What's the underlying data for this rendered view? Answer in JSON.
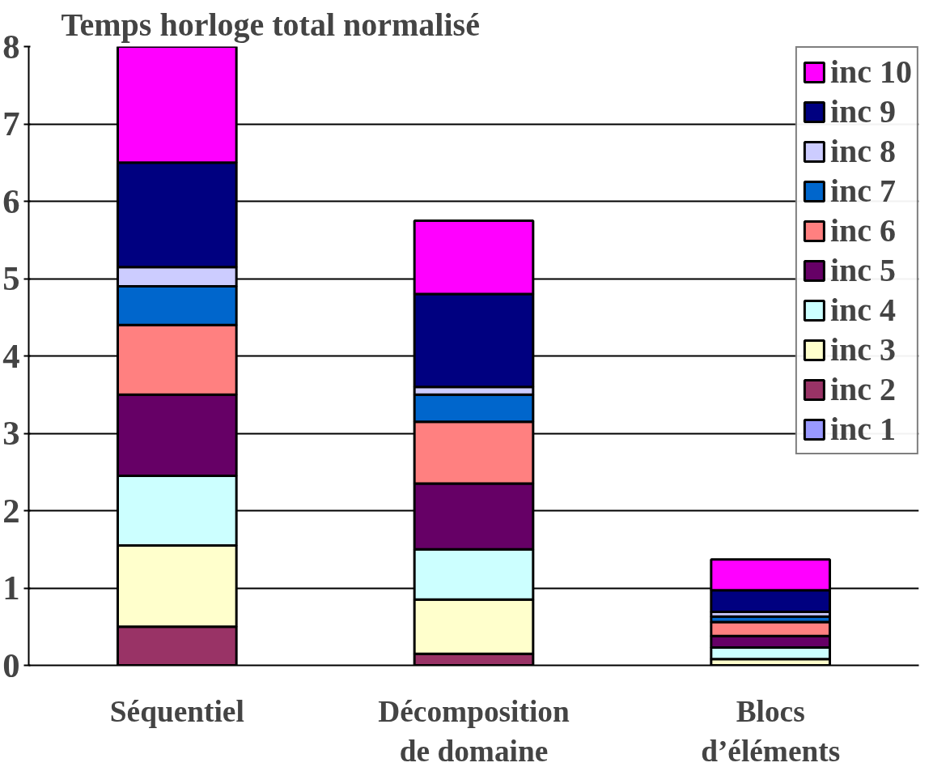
{
  "chart_data": {
    "type": "bar",
    "title": "Temps horloge total normalisé",
    "stacked": true,
    "categories": [
      "Séquentiel",
      "Décomposition de domaine",
      "Blocs d’éléments"
    ],
    "series": [
      {
        "name": "inc 1",
        "color": "#9999ff",
        "values": [
          0,
          0,
          0
        ]
      },
      {
        "name": "inc 2",
        "color": "#993366",
        "values": [
          0.5,
          0.15,
          null
        ]
      },
      {
        "name": "inc 3",
        "color": "#ffffcc",
        "values": [
          1.05,
          0.7,
          0.08
        ]
      },
      {
        "name": "inc 4",
        "color": "#ccffff",
        "values": [
          0.9,
          0.65,
          0.15
        ]
      },
      {
        "name": "inc 5",
        "color": "#660066",
        "values": [
          1.05,
          0.85,
          0.15
        ]
      },
      {
        "name": "inc 6",
        "color": "#ff8080",
        "values": [
          0.9,
          0.8,
          0.18
        ]
      },
      {
        "name": "inc 7",
        "color": "#0066cc",
        "values": [
          0.5,
          0.35,
          0.07
        ]
      },
      {
        "name": "inc 8",
        "color": "#ccccff",
        "values": [
          0.25,
          0.1,
          0.06
        ]
      },
      {
        "name": "inc 9",
        "color": "#000080",
        "values": [
          1.35,
          1.2,
          0.28
        ]
      },
      {
        "name": "inc 10",
        "color": "#ff00ff",
        "values": [
          1.5,
          0.95,
          0.4
        ]
      }
    ],
    "ylim": [
      0,
      8
    ],
    "yticks": [
      0,
      1,
      2,
      3,
      4,
      5,
      6,
      7,
      8
    ],
    "grid": "y",
    "legend": "top right"
  }
}
